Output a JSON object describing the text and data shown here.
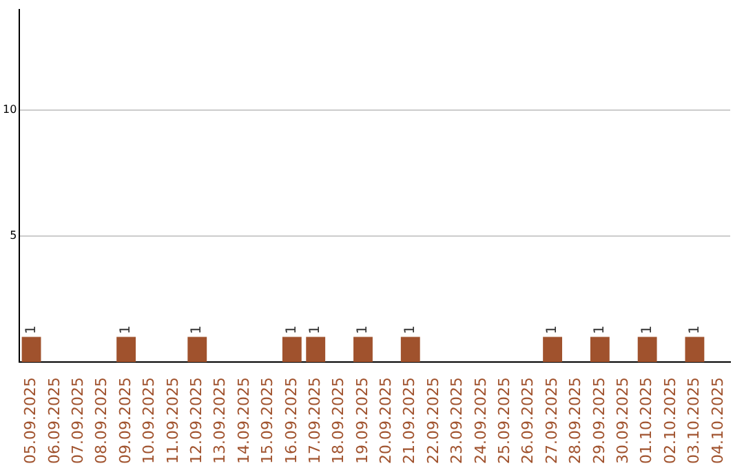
{
  "chart_data": {
    "type": "bar",
    "categories": [
      "05.09.2025",
      "06.09.2025",
      "07.09.2025",
      "08.09.2025",
      "09.09.2025",
      "10.09.2025",
      "11.09.2025",
      "12.09.2025",
      "13.09.2025",
      "14.09.2025",
      "15.09.2025",
      "16.09.2025",
      "17.09.2025",
      "18.09.2025",
      "19.09.2025",
      "20.09.2025",
      "21.09.2025",
      "22.09.2025",
      "23.09.2025",
      "24.09.2025",
      "25.09.2025",
      "26.09.2025",
      "27.09.2025",
      "28.09.2025",
      "29.09.2025",
      "30.09.2025",
      "01.10.2025",
      "02.10.2025",
      "03.10.2025",
      "04.10.2025"
    ],
    "values": [
      1,
      0,
      0,
      0,
      1,
      0,
      0,
      1,
      0,
      0,
      0,
      1,
      1,
      0,
      1,
      0,
      1,
      0,
      0,
      0,
      0,
      0,
      1,
      0,
      1,
      0,
      1,
      0,
      1,
      0
    ],
    "value_labels": [
      "1",
      null,
      null,
      null,
      "1",
      null,
      null,
      "1",
      null,
      null,
      null,
      "1",
      "1",
      null,
      "1",
      null,
      "1",
      null,
      null,
      null,
      null,
      null,
      "1",
      null,
      "1",
      null,
      "1",
      null,
      "1",
      null
    ],
    "color": "#a0522d",
    "ylim": [
      0,
      14
    ],
    "yticks": [
      5,
      10
    ],
    "grid": "y",
    "legend": false
  }
}
